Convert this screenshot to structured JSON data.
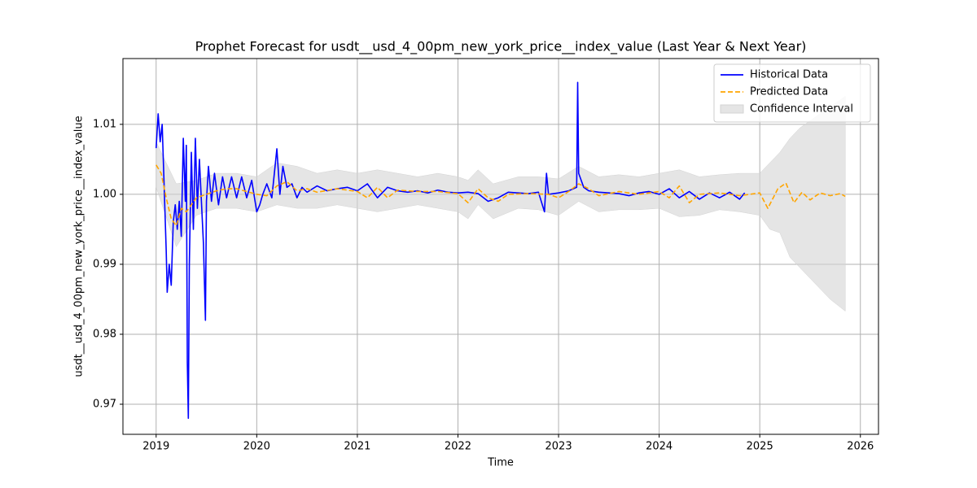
{
  "chart_data": {
    "type": "line",
    "title": "Prophet Forecast for usdt__usd_4_00pm_new_york_price__index_value (Last Year & Next Year)",
    "x_label": "Time",
    "y_label": "usdt__usd_4_00pm_new_york_price__index_value",
    "xlim": [
      2018.67,
      2026.18
    ],
    "ylim": [
      0.9657,
      1.0194
    ],
    "xticks": [
      2019,
      2020,
      2021,
      2022,
      2023,
      2024,
      2025,
      2026
    ],
    "yticks": [
      0.97,
      0.98,
      0.99,
      {
        "value": 1,
        "label": "1.00"
      },
      1.01
    ],
    "grid": true,
    "legend": "upper right",
    "series": [
      {
        "name": "Historical Data",
        "color": "#0000ff",
        "linestyle": "solid",
        "x": [
          2019.0,
          2019.02,
          2019.04,
          2019.06,
          2019.08,
          2019.1,
          2019.11,
          2019.13,
          2019.15,
          2019.17,
          2019.19,
          2019.21,
          2019.23,
          2019.25,
          2019.27,
          2019.29,
          2019.3,
          2019.31,
          2019.32,
          2019.33,
          2019.35,
          2019.37,
          2019.39,
          2019.41,
          2019.43,
          2019.45,
          2019.47,
          2019.49,
          2019.5,
          2019.52,
          2019.55,
          2019.58,
          2019.62,
          2019.66,
          2019.7,
          2019.75,
          2019.8,
          2019.85,
          2019.9,
          2019.95,
          2020.0,
          2020.03,
          2020.06,
          2020.1,
          2020.15,
          2020.2,
          2020.23,
          2020.26,
          2020.3,
          2020.35,
          2020.4,
          2020.45,
          2020.5,
          2020.6,
          2020.7,
          2020.8,
          2020.9,
          2021.0,
          2021.1,
          2021.2,
          2021.3,
          2021.4,
          2021.5,
          2021.6,
          2021.7,
          2021.8,
          2021.9,
          2022.0,
          2022.1,
          2022.2,
          2022.3,
          2022.4,
          2022.5,
          2022.6,
          2022.7,
          2022.8,
          2022.86,
          2022.88,
          2022.9,
          2023.0,
          2023.1,
          2023.18,
          2023.19,
          2023.2,
          2023.25,
          2023.3,
          2023.4,
          2023.5,
          2023.6,
          2023.7,
          2023.8,
          2023.9,
          2024.0,
          2024.1,
          2024.2,
          2024.3,
          2024.4,
          2024.5,
          2024.6,
          2024.7,
          2024.8,
          2024.85
        ],
        "values": [
          1.0066,
          1.0115,
          1.0075,
          1.01,
          1.001,
          0.992,
          0.986,
          0.99,
          0.987,
          0.996,
          0.9985,
          0.995,
          0.999,
          0.994,
          1.008,
          0.999,
          1.007,
          0.976,
          0.968,
          0.99,
          1.006,
          0.995,
          1.008,
          0.998,
          1.005,
          0.999,
          0.993,
          0.982,
          0.999,
          1.004,
          0.999,
          1.003,
          0.9985,
          1.0025,
          0.9995,
          1.0025,
          0.9995,
          1.0025,
          0.9995,
          1.002,
          0.9975,
          0.9985,
          1.0,
          1.0015,
          0.9995,
          1.0065,
          1.0,
          1.004,
          1.001,
          1.0015,
          0.9995,
          1.001,
          1.0003,
          1.0012,
          1.0005,
          1.0008,
          1.001,
          1.0005,
          1.0015,
          0.9995,
          1.001,
          1.0005,
          1.0003,
          1.0005,
          1.0002,
          1.0006,
          1.0003,
          1.0002,
          1.0003,
          1.0001,
          0.999,
          0.9995,
          1.0003,
          1.0002,
          1.0001,
          1.0003,
          0.9975,
          1.003,
          1.0,
          1.0002,
          1.0005,
          1.001,
          1.016,
          1.003,
          1.001,
          1.0005,
          1.0003,
          1.0002,
          1.0001,
          0.9998,
          1.0002,
          1.0004,
          1.0,
          1.0008,
          0.9995,
          1.0004,
          0.9993,
          1.0002,
          0.9995,
          1.0003,
          0.9993,
          1.0002
        ]
      },
      {
        "name": "Predicted Data",
        "color": "#ffa500",
        "linestyle": "dashed",
        "x": [
          2019.0,
          2019.05,
          2019.1,
          2019.15,
          2019.2,
          2019.25,
          2019.3,
          2019.35,
          2019.4,
          2019.5,
          2019.6,
          2019.7,
          2019.8,
          2019.9,
          2020.0,
          2020.1,
          2020.2,
          2020.3,
          2020.4,
          2020.5,
          2020.6,
          2020.8,
          2021.0,
          2021.1,
          2021.2,
          2021.3,
          2021.4,
          2021.6,
          2021.8,
          2022.0,
          2022.1,
          2022.2,
          2022.3,
          2022.4,
          2022.5,
          2022.7,
          2022.9,
          2023.0,
          2023.1,
          2023.2,
          2023.3,
          2023.4,
          2023.6,
          2023.8,
          2024.0,
          2024.1,
          2024.2,
          2024.3,
          2024.4,
          2024.6,
          2024.8,
          2025.0,
          2025.08,
          2025.18,
          2025.26,
          2025.34,
          2025.42,
          2025.5,
          2025.6,
          2025.7,
          2025.8,
          2025.85
        ],
        "values": [
          1.0042,
          1.003,
          0.9995,
          0.9965,
          0.9955,
          0.998,
          0.9975,
          0.9985,
          0.9995,
          1.0,
          1.0005,
          1.0008,
          1.0008,
          1.0004,
          1.0,
          0.9998,
          1.0012,
          1.0018,
          1.0005,
          1.0008,
          1.0003,
          1.0008,
          1.0004,
          0.9995,
          1.001,
          0.9995,
          1.0006,
          1.0004,
          1.0004,
          1.0001,
          0.9988,
          1.0008,
          0.9995,
          0.999,
          1.0,
          1.0001,
          1.0,
          0.9995,
          1.0004,
          1.0015,
          1.0008,
          0.9998,
          1.0004,
          1.0,
          1.0004,
          0.9995,
          1.0012,
          0.9988,
          1.0,
          1.0002,
          0.9998,
          1.0002,
          0.998,
          1.0008,
          1.0016,
          0.9988,
          1.0003,
          0.9992,
          1.0002,
          0.9998,
          1.0001,
          0.9997
        ]
      },
      {
        "name": "Confidence Interval",
        "color": "#d3d3d3",
        "kind": "band",
        "x": [
          2019.0,
          2019.2,
          2019.4,
          2019.6,
          2019.8,
          2020.0,
          2020.2,
          2020.4,
          2020.6,
          2020.8,
          2021.0,
          2021.2,
          2021.4,
          2021.6,
          2021.8,
          2022.0,
          2022.1,
          2022.2,
          2022.35,
          2022.6,
          2022.8,
          2023.0,
          2023.2,
          2023.4,
          2023.6,
          2023.8,
          2024.0,
          2024.2,
          2024.4,
          2024.6,
          2024.8,
          2025.0,
          2025.1,
          2025.2,
          2025.3,
          2025.4,
          2025.5,
          2025.6,
          2025.7,
          2025.85
        ],
        "upper": [
          1.0075,
          1.0015,
          1.002,
          1.003,
          1.003,
          1.0025,
          1.0045,
          1.004,
          1.003,
          1.0035,
          1.003,
          1.0035,
          1.003,
          1.0025,
          1.003,
          1.0025,
          1.002,
          1.0035,
          1.0015,
          1.0025,
          1.0025,
          1.0022,
          1.004,
          1.0025,
          1.0028,
          1.0025,
          1.003,
          1.0035,
          1.0025,
          1.0028,
          1.003,
          1.003,
          1.0045,
          1.006,
          1.008,
          1.0095,
          1.0105,
          1.0115,
          1.0125,
          1.014
        ],
        "lower": [
          1.001,
          0.9925,
          0.997,
          0.998,
          0.998,
          0.9975,
          0.9985,
          0.998,
          0.998,
          0.9985,
          0.998,
          0.9975,
          0.998,
          0.9985,
          0.998,
          0.9975,
          0.9965,
          0.9985,
          0.9965,
          0.998,
          0.9978,
          0.997,
          0.999,
          0.9975,
          0.9978,
          0.9978,
          0.998,
          0.9968,
          0.997,
          0.9978,
          0.9975,
          0.997,
          0.995,
          0.9945,
          0.991,
          0.9895,
          0.988,
          0.9865,
          0.985,
          0.9833
        ]
      }
    ]
  }
}
